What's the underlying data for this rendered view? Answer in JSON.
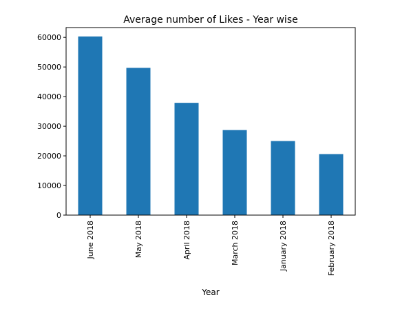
{
  "chart_data": {
    "type": "bar",
    "title": "Average number of Likes - Year wise",
    "xlabel": "Year",
    "ylabel": "",
    "categories": [
      "June 2018",
      "May 2018",
      "April 2018",
      "March 2018",
      "January 2018",
      "February 2018"
    ],
    "values": [
      60300,
      49700,
      37900,
      28700,
      25000,
      20600
    ],
    "ylim": [
      0,
      63300
    ],
    "yticks": [
      0,
      10000,
      20000,
      30000,
      40000,
      50000,
      60000
    ],
    "grid": false,
    "bar_color": "#1f77b4"
  }
}
